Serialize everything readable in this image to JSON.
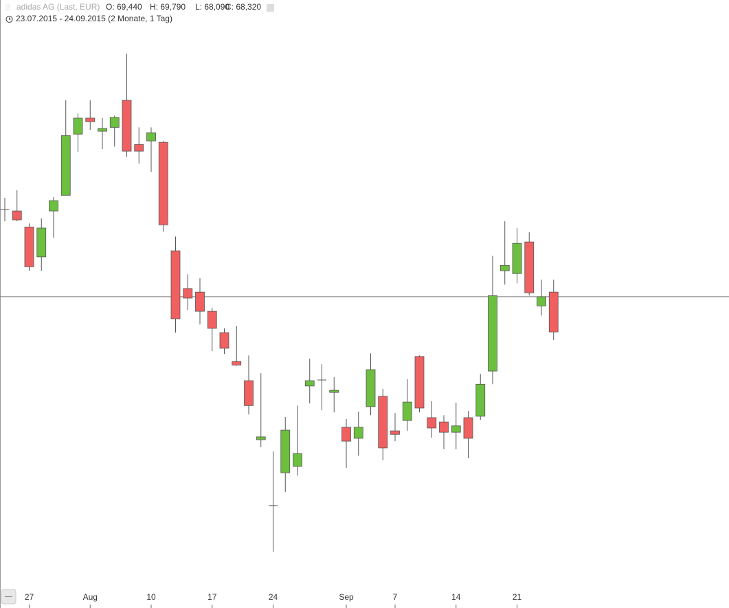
{
  "chart_data": {
    "type": "candlestick",
    "title": "adidas AG (Last, EUR)",
    "ohlc_text": [
      "O: 69,440",
      "H: 69,790",
      "L: 68,090",
      "C: 68,320"
    ],
    "subtitle": "23.07.2015 - 24.09.2015 (2 Monate, 1 Tag)",
    "x": [
      "2015-07-23",
      "2015-07-24",
      "2015-07-27",
      "2015-07-28",
      "2015-07-29",
      "2015-07-30",
      "2015-07-31",
      "2015-08-03",
      "2015-08-04",
      "2015-08-05",
      "2015-08-06",
      "2015-08-07",
      "2015-08-10",
      "2015-08-11",
      "2015-08-12",
      "2015-08-13",
      "2015-08-14",
      "2015-08-17",
      "2015-08-18",
      "2015-08-19",
      "2015-08-20",
      "2015-08-21",
      "2015-08-24",
      "2015-08-25",
      "2015-08-26",
      "2015-08-27",
      "2015-08-28",
      "2015-08-31",
      "2015-09-01",
      "2015-09-02",
      "2015-09-03",
      "2015-09-04",
      "2015-09-07",
      "2015-09-08",
      "2015-09-09",
      "2015-09-10",
      "2015-09-11",
      "2015-09-14",
      "2015-09-15",
      "2015-09-16",
      "2015-09-17",
      "2015-09-18",
      "2015-09-21",
      "2015-09-22",
      "2015-09-23",
      "2015-09-24"
    ],
    "open": [
      71.76,
      71.72,
      71.27,
      70.43,
      71.72,
      72.16,
      73.88,
      74.33,
      73.96,
      74.07,
      74.83,
      73.59,
      73.69,
      73.65,
      70.6,
      69.54,
      69.44,
      68.9,
      68.3,
      67.49,
      66.95,
      65.29,
      63.44,
      64.36,
      64.54,
      66.8,
      66.97,
      66.62,
      65.64,
      65.33,
      66.22,
      66.51,
      65.54,
      65.83,
      67.63,
      65.91,
      65.79,
      65.5,
      65.91,
      65.95,
      67.22,
      70.04,
      69.96,
      70.85,
      69.05,
      69.44
    ],
    "high": [
      72.09,
      72.3,
      71.37,
      71.51,
      72.11,
      74.83,
      74.46,
      74.83,
      74.33,
      74.4,
      76.14,
      74.07,
      74.07,
      73.69,
      71.0,
      69.94,
      69.83,
      69.0,
      68.42,
      68.49,
      67.66,
      67.16,
      64.96,
      65.93,
      66.25,
      67.57,
      67.41,
      67.05,
      65.87,
      66.08,
      67.72,
      66.72,
      66.04,
      66.99,
      67.66,
      66.37,
      65.98,
      66.33,
      66.1,
      67.14,
      70.46,
      71.43,
      71.24,
      71.12,
      69.79,
      69.79
    ],
    "low": [
      71.43,
      71.43,
      70.04,
      70.04,
      70.97,
      72.16,
      73.38,
      74.0,
      73.46,
      73.53,
      73.24,
      73.05,
      72.82,
      71.14,
      68.3,
      68.94,
      68.53,
      67.78,
      67.7,
      67.37,
      66.0,
      65.08,
      62.14,
      63.82,
      64.28,
      66.31,
      66.12,
      66.06,
      64.5,
      64.84,
      65.98,
      64.71,
      65.25,
      65.54,
      66.06,
      65.35,
      65.02,
      65.02,
      64.77,
      65.85,
      66.85,
      69.65,
      69.69,
      69.34,
      68.78,
      68.09
    ],
    "close": [
      71.76,
      71.47,
      70.15,
      71.24,
      72.01,
      73.84,
      74.33,
      74.23,
      74.04,
      74.35,
      73.4,
      73.4,
      73.92,
      71.33,
      68.69,
      69.27,
      68.9,
      68.42,
      67.86,
      67.39,
      66.25,
      65.37,
      63.44,
      65.56,
      64.9,
      66.95,
      66.97,
      66.68,
      65.25,
      65.64,
      67.26,
      65.06,
      65.44,
      66.35,
      66.18,
      65.62,
      65.5,
      65.68,
      65.33,
      66.85,
      69.34,
      70.19,
      70.81,
      69.42,
      69.31,
      68.32
    ],
    "up_color": "#6cbf3f",
    "down_color": "#f06060",
    "ylim": [
      60.56,
      77.65
    ],
    "reference_line": 69.31,
    "xticks": [
      {
        "value": "2015-07-27",
        "label": "27"
      },
      {
        "value": "2015-08-03",
        "label": "Aug"
      },
      {
        "value": "2015-08-10",
        "label": "10"
      },
      {
        "value": "2015-08-17",
        "label": "17"
      },
      {
        "value": "2015-08-24",
        "label": "24"
      },
      {
        "value": "2015-09-01",
        "label": "Sep"
      },
      {
        "value": "2015-09-07",
        "label": "7"
      },
      {
        "value": "2015-09-14",
        "label": "14"
      },
      {
        "value": "2015-09-21",
        "label": "21"
      }
    ]
  }
}
